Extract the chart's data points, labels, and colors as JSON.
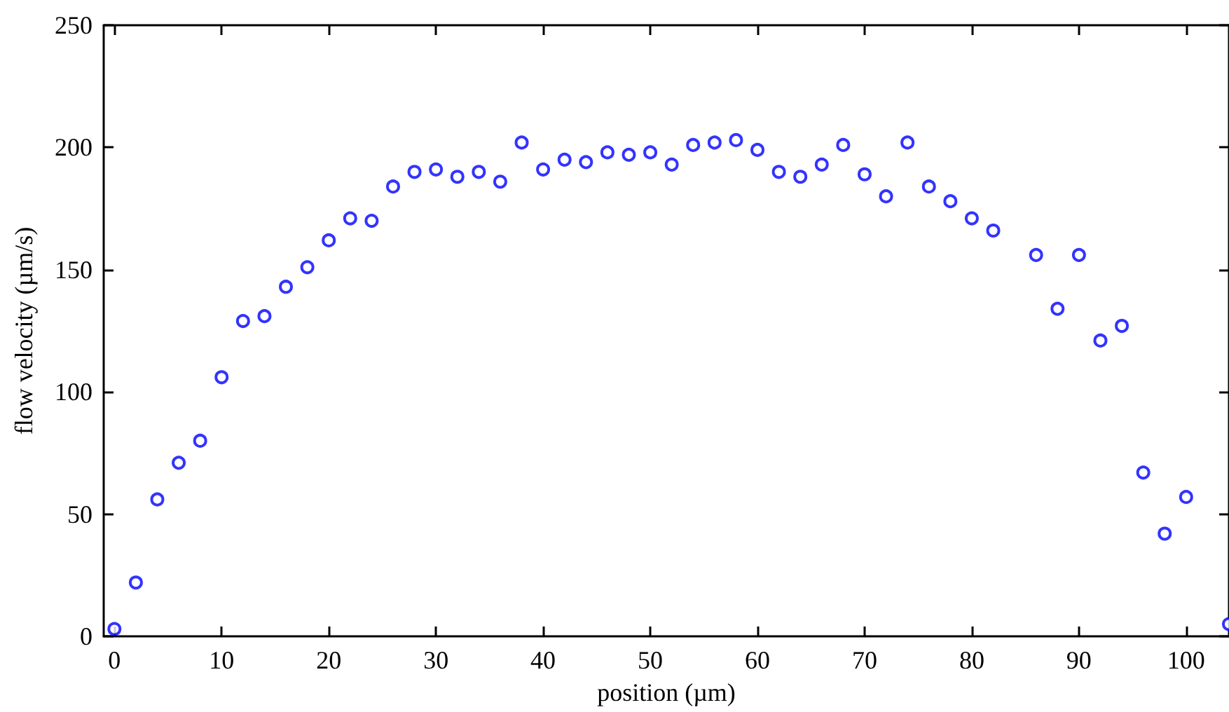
{
  "chart_data": {
    "type": "scatter",
    "xlabel": "position (µm)",
    "ylabel": "flow velocity (µm/s)",
    "x": [
      0,
      2,
      4,
      6,
      8,
      10,
      12,
      14,
      16,
      18,
      20,
      22,
      24,
      26,
      28,
      30,
      32,
      34,
      36,
      38,
      40,
      42,
      44,
      46,
      48,
      50,
      52,
      54,
      56,
      58,
      60,
      62,
      64,
      66,
      68,
      70,
      72,
      74,
      76,
      78,
      80,
      82,
      86,
      88,
      90,
      92,
      94,
      96,
      98,
      100,
      104
    ],
    "values": [
      3,
      22,
      56,
      71,
      80,
      106,
      129,
      131,
      143,
      151,
      162,
      171,
      170,
      184,
      190,
      191,
      188,
      190,
      186,
      202,
      191,
      195,
      194,
      198,
      197,
      198,
      193,
      201,
      202,
      203,
      199,
      190,
      188,
      193,
      201,
      189,
      180,
      202,
      184,
      178,
      171,
      166,
      156,
      134,
      156,
      121,
      127,
      67,
      42,
      57,
      5
    ],
    "color": "#0000ff",
    "marker": "circle",
    "grid": false,
    "xlim": [
      -1,
      104
    ],
    "xticks": [
      0,
      10,
      20,
      30,
      40,
      50,
      60,
      70,
      80,
      90,
      100
    ],
    "ylim": [
      0,
      250
    ],
    "yticks": [
      0,
      50,
      100,
      150,
      200,
      250
    ]
  }
}
